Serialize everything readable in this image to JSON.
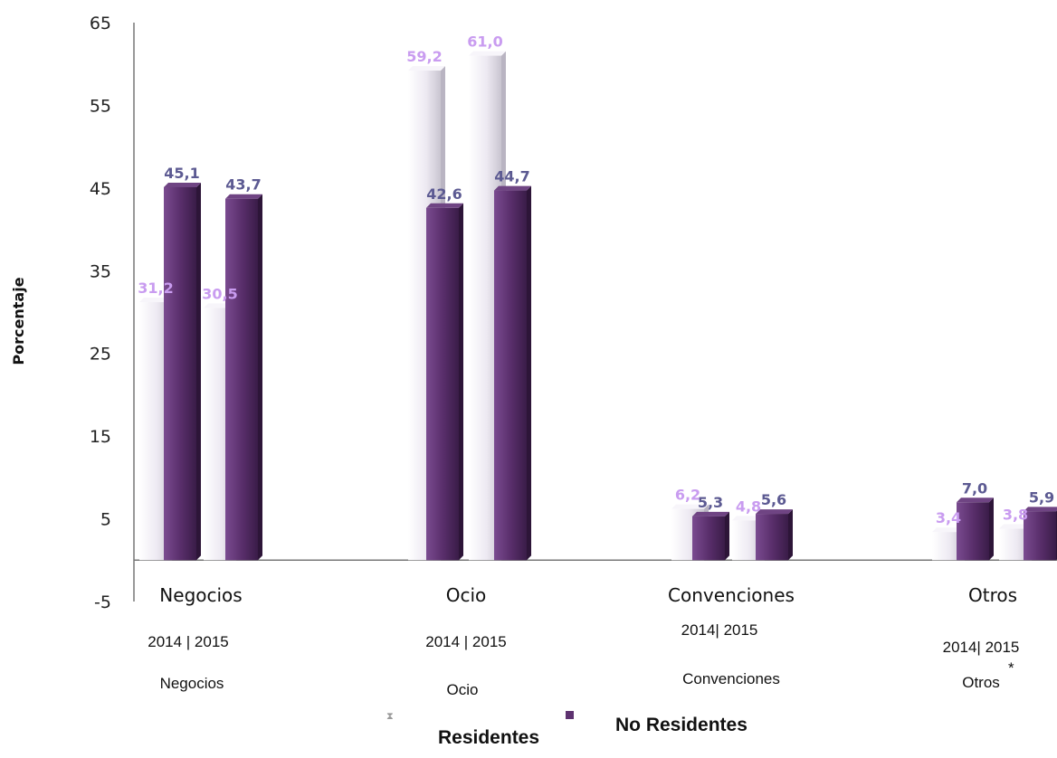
{
  "chart_data": {
    "type": "bar",
    "ylabel": "Porcentaje",
    "ylim": [
      -5,
      65
    ],
    "yticks": [
      "65",
      "55",
      "45",
      "35",
      "25",
      "15",
      "5",
      "-5"
    ],
    "categories": [
      "Negocios",
      "Ocio",
      "Convenciones",
      "Otros"
    ],
    "years_labels": [
      "2014 |  2015",
      "2014 |  2015",
      "2014|  2015",
      "2014|  2015"
    ],
    "category_sublabels": [
      "Negocios",
      "Ocio",
      "Convenciones",
      "Otros"
    ],
    "asterisk": "*",
    "series": [
      {
        "name": "Residentes",
        "color": "#eeeaf2",
        "label_color": "#c99cf0",
        "values_2014": [
          31.2,
          59.2,
          6.2,
          3.4
        ],
        "values_2015": [
          30.5,
          61.0,
          4.8,
          3.8
        ],
        "labels_2014": [
          "31,2",
          "59,2",
          "6,2",
          "3,4"
        ],
        "labels_2015": [
          "30,5",
          "61,0",
          "4,8",
          "3,8"
        ]
      },
      {
        "name": "No Residentes",
        "color": "#5e3270",
        "label_color": "#5c5a92",
        "values_2014": [
          45.1,
          42.6,
          5.3,
          7.0
        ],
        "values_2015": [
          43.7,
          44.7,
          5.6,
          5.9
        ],
        "labels_2014": [
          "45,1",
          "42,6",
          "5,3",
          "7,0"
        ],
        "labels_2015": [
          "43,7",
          "44,7",
          "5,6",
          "5,9"
        ]
      }
    ],
    "legend": {
      "position": "bottom",
      "items": [
        "Residentes",
        "No Residentes"
      ]
    }
  }
}
